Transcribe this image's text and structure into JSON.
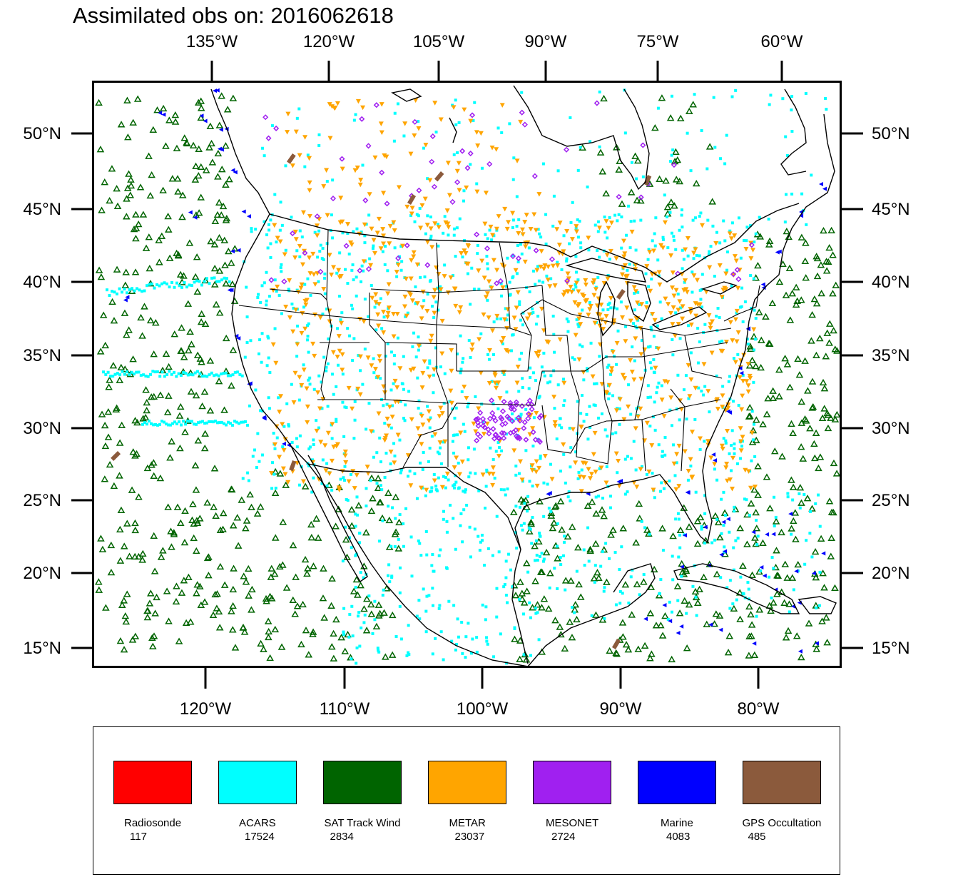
{
  "title": "Assimilated obs on: 2016062618",
  "map": {
    "top_lon_labels": [
      "135°W",
      "120°W",
      "105°W",
      "90°W",
      "75°W",
      "60°W"
    ],
    "bottom_lon_labels": [
      "120°W",
      "110°W",
      "100°W",
      "90°W",
      "80°W"
    ],
    "lat_labels": [
      "50°N",
      "45°N",
      "40°N",
      "35°N",
      "30°N",
      "25°N",
      "20°N",
      "15°N"
    ]
  },
  "legend": [
    {
      "name": "Radiosonde",
      "count": "117",
      "color": "#ff0000"
    },
    {
      "name": "ACARS",
      "count": "17524",
      "color": "#00ffff"
    },
    {
      "name": "SAT Track Wind",
      "count": "2834",
      "color": "#006400"
    },
    {
      "name": "METAR",
      "count": "23037",
      "color": "#ffa500"
    },
    {
      "name": "MESONET",
      "count": "2724",
      "color": "#a020f0"
    },
    {
      "name": "Marine",
      "count": "4083",
      "color": "#0000ff"
    },
    {
      "name": "GPS Occultation",
      "count": "485",
      "color": "#8b5a3c"
    }
  ]
}
